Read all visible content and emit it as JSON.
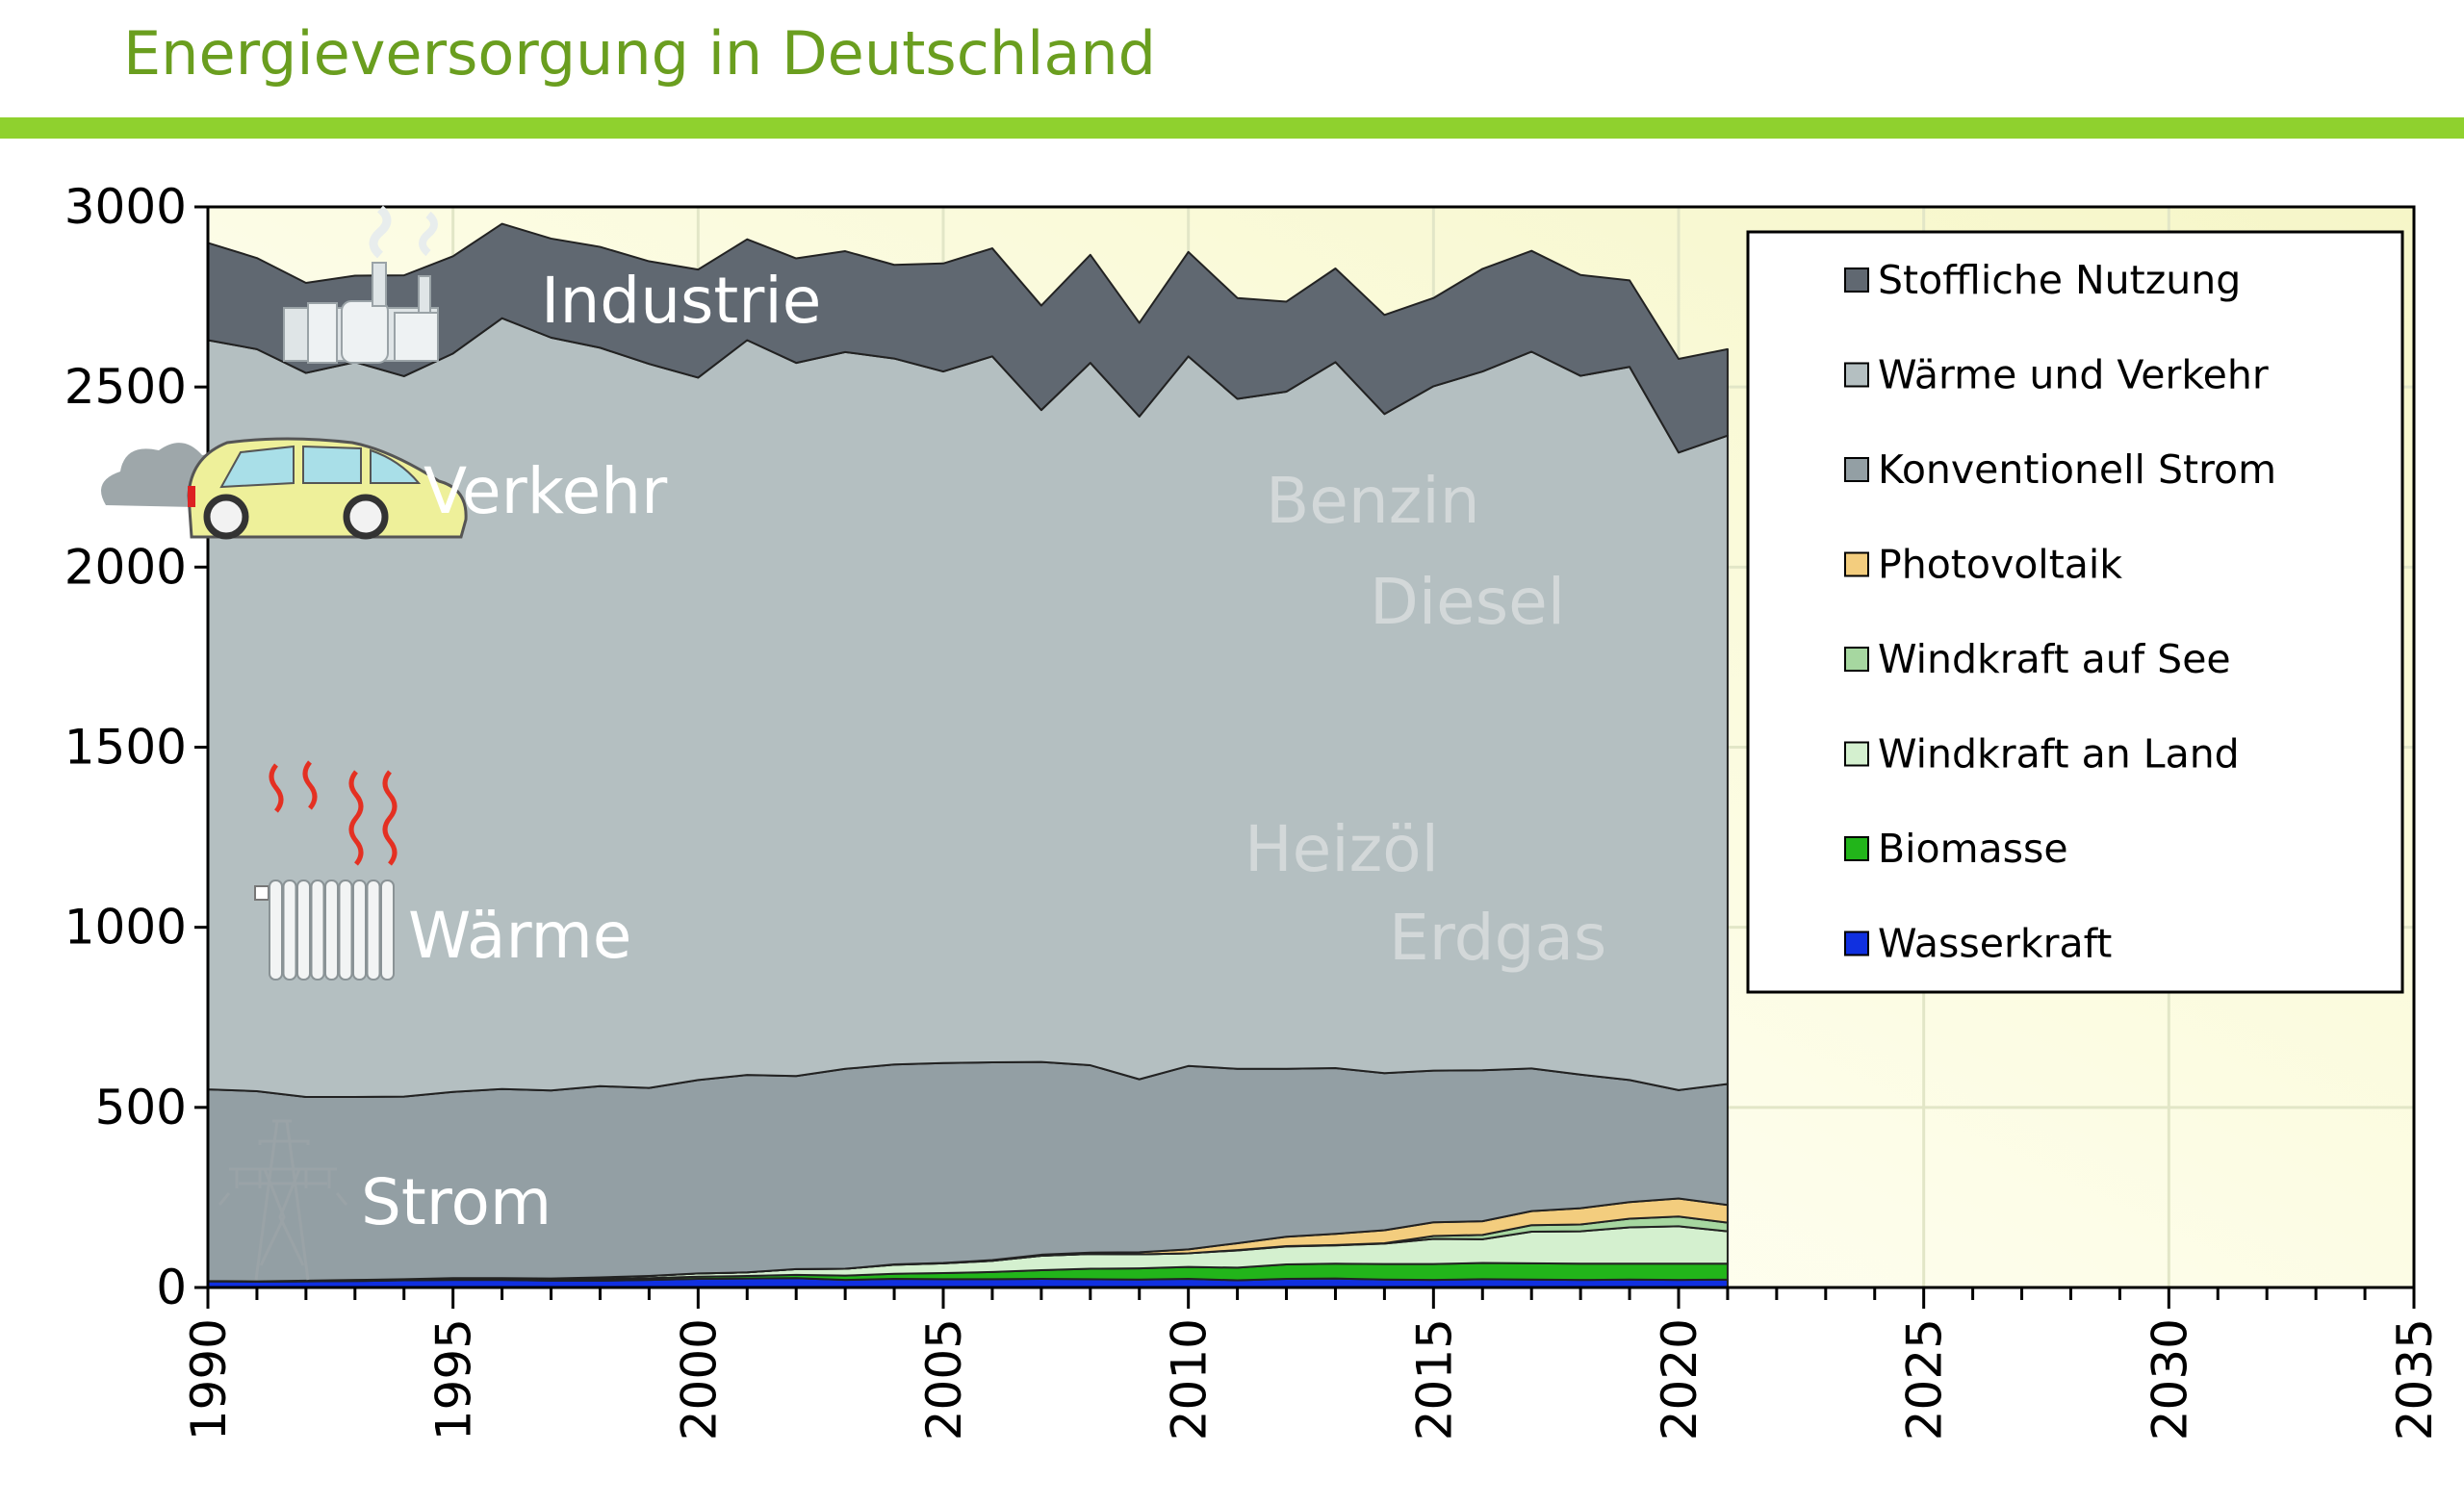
{
  "title": "Energieversorgung in Deutschland",
  "chart_data": {
    "type": "area",
    "title": "Energieversorgung in Deutschland",
    "xlabel": "",
    "ylabel": "",
    "xlim": [
      1990,
      2035
    ],
    "ylim": [
      0,
      3000
    ],
    "stacked": true,
    "grid": true,
    "legend_position": "top-right",
    "x_ticks": [
      1990,
      1995,
      2000,
      2005,
      2010,
      2015,
      2020,
      2025,
      2030,
      2035
    ],
    "y_ticks": [
      0,
      500,
      1000,
      1500,
      2000,
      2500,
      3000
    ],
    "x": [
      1990,
      1991,
      1992,
      1993,
      1994,
      1995,
      1996,
      1997,
      1998,
      1999,
      2000,
      2001,
      2002,
      2003,
      2004,
      2005,
      2006,
      2007,
      2008,
      2009,
      2010,
      2011,
      2012,
      2013,
      2014,
      2015,
      2016,
      2017,
      2018,
      2019,
      2020,
      2021
    ],
    "series": [
      {
        "name": "Wasserkraft",
        "color": "#1030e0",
        "values": [
          17,
          16,
          17,
          18,
          20,
          21,
          21,
          19,
          19,
          21,
          24,
          25,
          26,
          21,
          24,
          23,
          23,
          24,
          23,
          22,
          24,
          20,
          24,
          25,
          22,
          21,
          23,
          22,
          21,
          22,
          21,
          22
        ]
      },
      {
        "name": "Biomasse",
        "color": "#22b51a",
        "values": [
          1,
          1,
          2,
          2,
          2,
          3,
          3,
          3,
          4,
          5,
          6,
          7,
          9,
          12,
          14,
          17,
          20,
          24,
          29,
          31,
          33,
          35,
          40,
          41,
          43,
          44,
          45,
          45,
          45,
          44,
          45,
          44
        ]
      },
      {
        "name": "Windkraft an Land",
        "color": "#d4f0cf",
        "values": [
          0,
          0,
          0,
          1,
          1,
          2,
          2,
          3,
          5,
          6,
          9,
          10,
          16,
          19,
          25,
          27,
          31,
          40,
          41,
          39,
          38,
          48,
          50,
          51,
          57,
          70,
          66,
          88,
          90,
          101,
          104,
          90
        ]
      },
      {
        "name": "Windkraft auf See",
        "color": "#a6d7a0",
        "values": [
          0,
          0,
          0,
          0,
          0,
          0,
          0,
          0,
          0,
          0,
          0,
          0,
          0,
          0,
          0,
          0,
          0,
          0,
          0,
          0,
          0,
          1,
          1,
          1,
          1,
          8,
          12,
          18,
          19,
          24,
          27,
          24
        ]
      },
      {
        "name": "Photovoltaik",
        "color": "#f3cd7e",
        "values": [
          0,
          0,
          0,
          0,
          0,
          0,
          0,
          0,
          0,
          0,
          0,
          0,
          0,
          0,
          1,
          1,
          2,
          3,
          4,
          6,
          11,
          19,
          26,
          31,
          36,
          38,
          38,
          39,
          45,
          46,
          50,
          49
        ]
      },
      {
        "name": "Konventionell Strom",
        "color": "#939fa4",
        "values": [
          532,
          528,
          510,
          508,
          507,
          517,
          525,
          522,
          531,
          522,
          537,
          548,
          536,
          555,
          555,
          555,
          549,
          535,
          520,
          480,
          509,
          484,
          466,
          460,
          436,
          421,
          419,
          396,
          371,
          339,
          301,
          336
        ]
      },
      {
        "name": "Wärme und Verkehr",
        "color": "#b4bfc1",
        "values": [
          2080,
          2060,
          2010,
          2040,
          2000,
          2050,
          2140,
          2090,
          2050,
          2010,
          1950,
          2040,
          1980,
          1990,
          1960,
          1920,
          1960,
          1810,
          1950,
          1840,
          1970,
          1860,
          1880,
          1960,
          1830,
          1900,
          1940,
          1990,
          1940,
          1980,
          1770,
          1800
        ]
      },
      {
        "name": "Stoffliche Nutzung",
        "color": "#606871",
        "values": [
          270,
          253,
          250,
          240,
          280,
          270,
          262,
          275,
          280,
          285,
          300,
          280,
          290,
          280,
          260,
          300,
          300,
          290,
          300,
          260,
          290,
          280,
          250,
          260,
          275,
          245,
          285,
          280,
          280,
          240,
          260,
          240
        ]
      }
    ],
    "annotations": [
      {
        "text": "Industrie"
      },
      {
        "text": "Verkehr"
      },
      {
        "text": "Wärme"
      },
      {
        "text": "Strom"
      },
      {
        "text": "Benzin"
      },
      {
        "text": "Diesel"
      },
      {
        "text": "Heizöl"
      },
      {
        "text": "Erdgas"
      }
    ]
  }
}
